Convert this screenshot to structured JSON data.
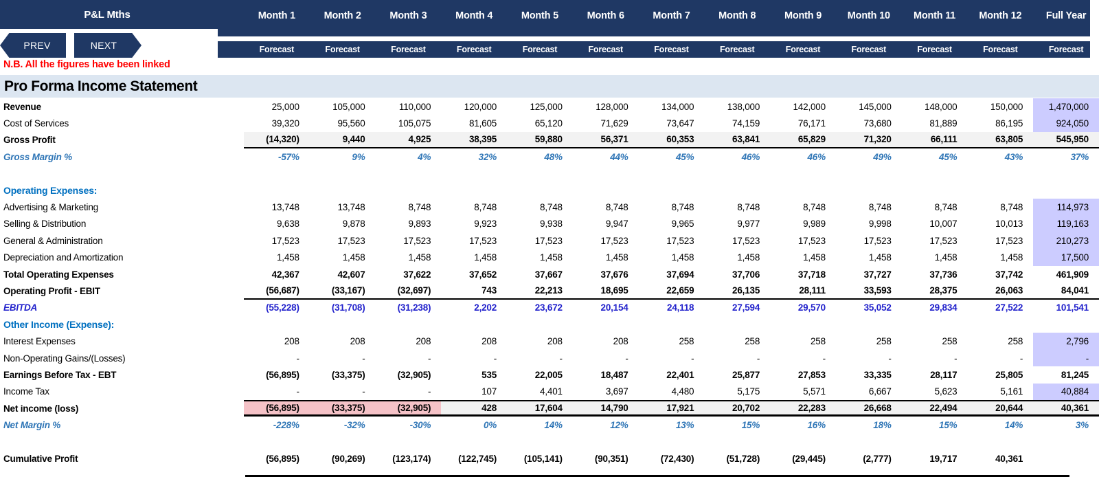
{
  "header": {
    "pl_title": "P&L Mths",
    "prev_label": "PREV",
    "next_label": "NEXT",
    "forecast_label": "Forecast",
    "months": [
      "Month 1",
      "Month 2",
      "Month 3",
      "Month 4",
      "Month 5",
      "Month 6",
      "Month 7",
      "Month 8",
      "Month 9",
      "Month 10",
      "Month 11",
      "Month 12",
      "Full Year"
    ],
    "note": "N.B. All the figures have been linked"
  },
  "title": "Pro Forma Income Statement",
  "colors": {
    "navy": "#1F3864",
    "title_band": "#DCE6F1",
    "section_blue": "#0070C0",
    "margin_blue": "#2E75B6",
    "ebitda_blue": "#2222CC",
    "note_red": "#FF0000",
    "gray_band": "#F2F2F2",
    "full_year_highlight": "#CCCCFF",
    "loss_pink": "#F5C2C7"
  },
  "table": {
    "rows": [
      {
        "label": "Revenue",
        "style": "plain",
        "label_bold": true,
        "fy_hl": true,
        "values": [
          "25,000",
          "105,000",
          "110,000",
          "120,000",
          "125,000",
          "128,000",
          "134,000",
          "138,000",
          "142,000",
          "145,000",
          "148,000",
          "150,000",
          "1,470,000"
        ]
      },
      {
        "label": "Cost of Services",
        "style": "plain",
        "fy_hl": true,
        "values": [
          "39,320",
          "95,560",
          "105,075",
          "81,605",
          "65,120",
          "71,629",
          "73,647",
          "74,159",
          "76,171",
          "73,680",
          "81,889",
          "86,195",
          "924,050"
        ]
      },
      {
        "label": "Gross Profit",
        "style": "subtotal",
        "values": [
          "(14,320)",
          "9,440",
          "4,925",
          "38,395",
          "59,880",
          "56,371",
          "60,353",
          "63,841",
          "65,829",
          "71,320",
          "66,111",
          "63,805",
          "545,950"
        ]
      },
      {
        "label": "Gross Margin %",
        "style": "margin",
        "values": [
          "-57%",
          "9%",
          "4%",
          "32%",
          "48%",
          "44%",
          "45%",
          "46%",
          "46%",
          "49%",
          "45%",
          "43%",
          "37%"
        ]
      },
      {
        "label": "",
        "style": "blank",
        "values": []
      },
      {
        "label": "Operating Expenses:",
        "style": "section",
        "values": []
      },
      {
        "label": "Advertising & Marketing",
        "style": "plain",
        "fy_hl": true,
        "values": [
          "13,748",
          "13,748",
          "8,748",
          "8,748",
          "8,748",
          "8,748",
          "8,748",
          "8,748",
          "8,748",
          "8,748",
          "8,748",
          "8,748",
          "114,973"
        ]
      },
      {
        "label": "Selling & Distribution",
        "style": "plain",
        "fy_hl": true,
        "values": [
          "9,638",
          "9,878",
          "9,893",
          "9,923",
          "9,938",
          "9,947",
          "9,965",
          "9,977",
          "9,989",
          "9,998",
          "10,007",
          "10,013",
          "119,163"
        ]
      },
      {
        "label": "General & Administration",
        "style": "plain",
        "fy_hl": true,
        "values": [
          "17,523",
          "17,523",
          "17,523",
          "17,523",
          "17,523",
          "17,523",
          "17,523",
          "17,523",
          "17,523",
          "17,523",
          "17,523",
          "17,523",
          "210,273"
        ]
      },
      {
        "label": "Depreciation and Amortization",
        "style": "plain",
        "fy_hl": true,
        "values": [
          "1,458",
          "1,458",
          "1,458",
          "1,458",
          "1,458",
          "1,458",
          "1,458",
          "1,458",
          "1,458",
          "1,458",
          "1,458",
          "1,458",
          "17,500"
        ]
      },
      {
        "label": "Total Operating Expenses",
        "style": "bold",
        "values": [
          "42,367",
          "42,607",
          "37,622",
          "37,652",
          "37,667",
          "37,676",
          "37,694",
          "37,706",
          "37,718",
          "37,727",
          "37,736",
          "37,742",
          "461,909"
        ]
      },
      {
        "label": "Operating Profit - EBIT",
        "style": "bold_underline",
        "values": [
          "(56,687)",
          "(33,167)",
          "(32,697)",
          "743",
          "22,213",
          "18,695",
          "22,659",
          "26,135",
          "28,111",
          "33,593",
          "28,375",
          "26,063",
          "84,041"
        ]
      },
      {
        "label": "EBITDA",
        "style": "ebitda",
        "values": [
          "(55,228)",
          "(31,708)",
          "(31,238)",
          "2,202",
          "23,672",
          "20,154",
          "24,118",
          "27,594",
          "29,570",
          "35,052",
          "29,834",
          "27,522",
          "101,541"
        ]
      },
      {
        "label": "Other Income (Expense):",
        "style": "section",
        "values": []
      },
      {
        "label": "Interest Expenses",
        "style": "plain",
        "fy_hl": true,
        "values": [
          "208",
          "208",
          "208",
          "208",
          "208",
          "208",
          "258",
          "258",
          "258",
          "258",
          "258",
          "258",
          "2,796"
        ]
      },
      {
        "label": "Non-Operating Gains/(Losses)",
        "style": "plain",
        "fy_hl": true,
        "values": [
          "-",
          "-",
          "-",
          "-",
          "-",
          "-",
          "-",
          "-",
          "-",
          "-",
          "-",
          "-",
          "-"
        ]
      },
      {
        "label": "Earnings Before Tax - EBT",
        "style": "bold",
        "values": [
          "(56,895)",
          "(33,375)",
          "(32,905)",
          "535",
          "22,005",
          "18,487",
          "22,401",
          "25,877",
          "27,853",
          "33,335",
          "28,117",
          "25,805",
          "81,245"
        ]
      },
      {
        "label": "Income Tax",
        "style": "plain",
        "fy_hl": true,
        "values": [
          "-",
          "-",
          "-",
          "107",
          "4,401",
          "3,697",
          "4,480",
          "5,175",
          "5,571",
          "6,667",
          "5,623",
          "5,161",
          "40,884"
        ]
      },
      {
        "label": "Net income (loss)",
        "style": "net_income",
        "values": [
          "(56,895)",
          "(33,375)",
          "(32,905)",
          "428",
          "17,604",
          "14,790",
          "17,921",
          "20,702",
          "22,283",
          "26,668",
          "22,494",
          "20,644",
          "40,361"
        ]
      },
      {
        "label": "Net Margin %",
        "style": "margin",
        "values": [
          "-228%",
          "-32%",
          "-30%",
          "0%",
          "14%",
          "12%",
          "13%",
          "15%",
          "16%",
          "18%",
          "15%",
          "14%",
          "3%"
        ]
      },
      {
        "label": "",
        "style": "blank",
        "values": []
      },
      {
        "label": "Cumulative Profit",
        "style": "bold",
        "values": [
          "(56,895)",
          "(90,269)",
          "(123,174)",
          "(122,745)",
          "(105,141)",
          "(90,351)",
          "(72,430)",
          "(51,728)",
          "(29,445)",
          "(2,777)",
          "19,717",
          "40,361",
          ""
        ]
      }
    ]
  }
}
